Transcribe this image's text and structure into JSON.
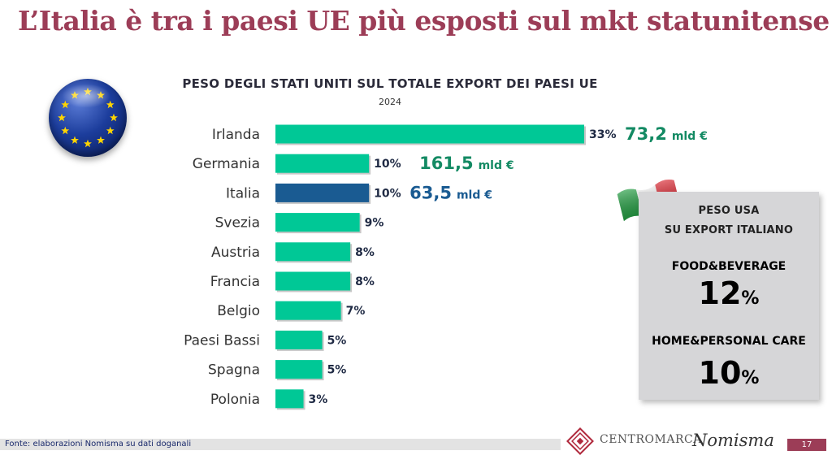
{
  "page": {
    "title": "L’Italia è tra i paesi UE più esposti sul mkt statunitense",
    "source": "Fonte: elaborazioni Nomisma su dati doganali",
    "page_number": "17",
    "logos": {
      "centromarca": "CENTROMARCA",
      "nomisma": "Nomisma"
    }
  },
  "chart_data": {
    "type": "bar",
    "orientation": "horizontal",
    "title": "PESO DEGLI STATI UNITI SUL TOTALE EXPORT DEI PAESI UE",
    "subtitle": "2024",
    "categories": [
      "Irlanda",
      "Germania",
      "Italia",
      "Svezia",
      "Austria",
      "Francia",
      "Belgio",
      "Paesi Bassi",
      "Spagna",
      "Polonia"
    ],
    "values": [
      33,
      10,
      10,
      9,
      8,
      8,
      7,
      5,
      5,
      3
    ],
    "value_labels": [
      "33%",
      "10%",
      "10%",
      "9%",
      "8%",
      "8%",
      "7%",
      "5%",
      "5%",
      "3%"
    ],
    "highlight": "Italia",
    "colors": {
      "default": "#00c896",
      "highlight": "#1a5b92",
      "label": "#1f2a44"
    },
    "annotations": [
      {
        "category": "Irlanda",
        "value": "73,2",
        "unit": "mld €",
        "color": "#138a63"
      },
      {
        "category": "Germania",
        "value": "161,5",
        "unit": "mld €",
        "color": "#138a63"
      },
      {
        "category": "Italia",
        "value": "63,5",
        "unit": "mld €",
        "color": "#1a5b92"
      }
    ],
    "grid": false,
    "legend": "none"
  },
  "panel": {
    "title_line1": "PESO USA",
    "title_line2": "SU EXPORT ITALIANO",
    "categories": [
      {
        "label": "FOOD&BEVERAGE",
        "value": "12",
        "unit": "%",
        "color": "#1a5b92"
      },
      {
        "label": "HOME&PERSONAL CARE",
        "value": "10",
        "unit": "%",
        "color": "#e5176d"
      }
    ]
  },
  "icons": {
    "eu_flag": "eu-flag-icon",
    "italy_flag": "italy-flag-icon"
  }
}
